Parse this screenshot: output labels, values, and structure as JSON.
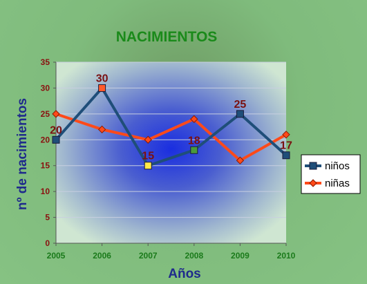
{
  "chart_data": {
    "type": "line",
    "title": "NACIMIENTOS",
    "xlabel": "Años",
    "ylabel": "nº de nacimientos",
    "categories": [
      "2005",
      "2006",
      "2007",
      "2008",
      "2009",
      "2010"
    ],
    "ylim": [
      0,
      35
    ],
    "yticks": [
      "0",
      "5",
      "10",
      "15",
      "20",
      "25",
      "30",
      "35"
    ],
    "grid": true,
    "legend_position": "right",
    "series": [
      {
        "name": "niños",
        "values": [
          20,
          30,
          15,
          18,
          25,
          17
        ],
        "color": "#1f4e79",
        "marker": "square",
        "marker_colors": [
          "#1f4e79",
          "#ff5a2a",
          "#ffe84a",
          "#4a9a3a",
          "#1f4e79",
          "#1f4e79"
        ],
        "data_labels": [
          "20",
          "30",
          "15",
          "18",
          "25",
          "17"
        ]
      },
      {
        "name": "niñas",
        "values": [
          25,
          22,
          20,
          24,
          16,
          21
        ],
        "color": "#ff4a1a",
        "marker": "diamond"
      }
    ]
  }
}
